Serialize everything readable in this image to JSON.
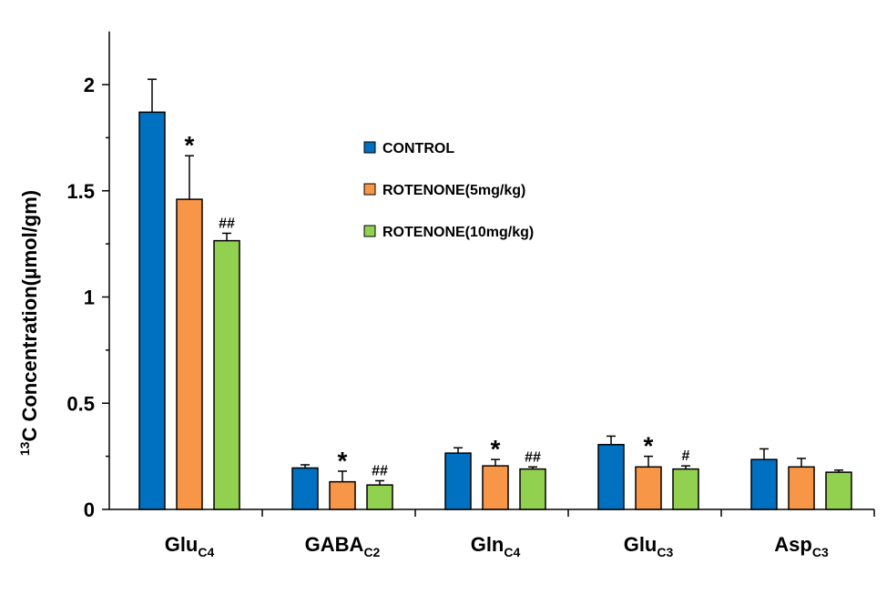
{
  "chart_data": {
    "type": "bar",
    "title": "",
    "xlabel": "",
    "ylabel": {
      "sup": "13",
      "text": "C Concentration(µmol/gm)"
    },
    "ylim": [
      0,
      2.25
    ],
    "yticks": [
      0,
      0.5,
      1,
      1.5,
      2
    ],
    "ytick_labels": [
      "0",
      "0.5",
      "1",
      "1.5",
      "2"
    ],
    "categories": [
      {
        "main": "Glu",
        "sub": "C4"
      },
      {
        "main": "GABA",
        "sub": "C2"
      },
      {
        "main": "Gln",
        "sub": "C4"
      },
      {
        "main": "Glu",
        "sub": "C3"
      },
      {
        "main": "Asp",
        "sub": "C3"
      }
    ],
    "series": [
      {
        "name": "CONTROL",
        "color": "#0070C0",
        "values": [
          1.87,
          0.195,
          0.265,
          0.305,
          0.235
        ],
        "errors": [
          0.155,
          0.015,
          0.025,
          0.04,
          0.05
        ],
        "annotations": [
          "",
          "",
          "",
          "",
          ""
        ]
      },
      {
        "name": "ROTENONE(5mg/kg)",
        "color": "#F79646",
        "values": [
          1.46,
          0.13,
          0.205,
          0.2,
          0.2
        ],
        "errors": [
          0.205,
          0.05,
          0.03,
          0.05,
          0.04
        ],
        "annotations": [
          "*",
          "*",
          "*",
          "*",
          ""
        ]
      },
      {
        "name": "ROTENONE(10mg/kg)",
        "color": "#92D050",
        "values": [
          1.265,
          0.115,
          0.19,
          0.19,
          0.175
        ],
        "errors": [
          0.035,
          0.02,
          0.01,
          0.015,
          0.01
        ],
        "annotations": [
          "##",
          "##",
          "##",
          "#",
          ""
        ]
      }
    ],
    "legend_position": "top-center"
  }
}
